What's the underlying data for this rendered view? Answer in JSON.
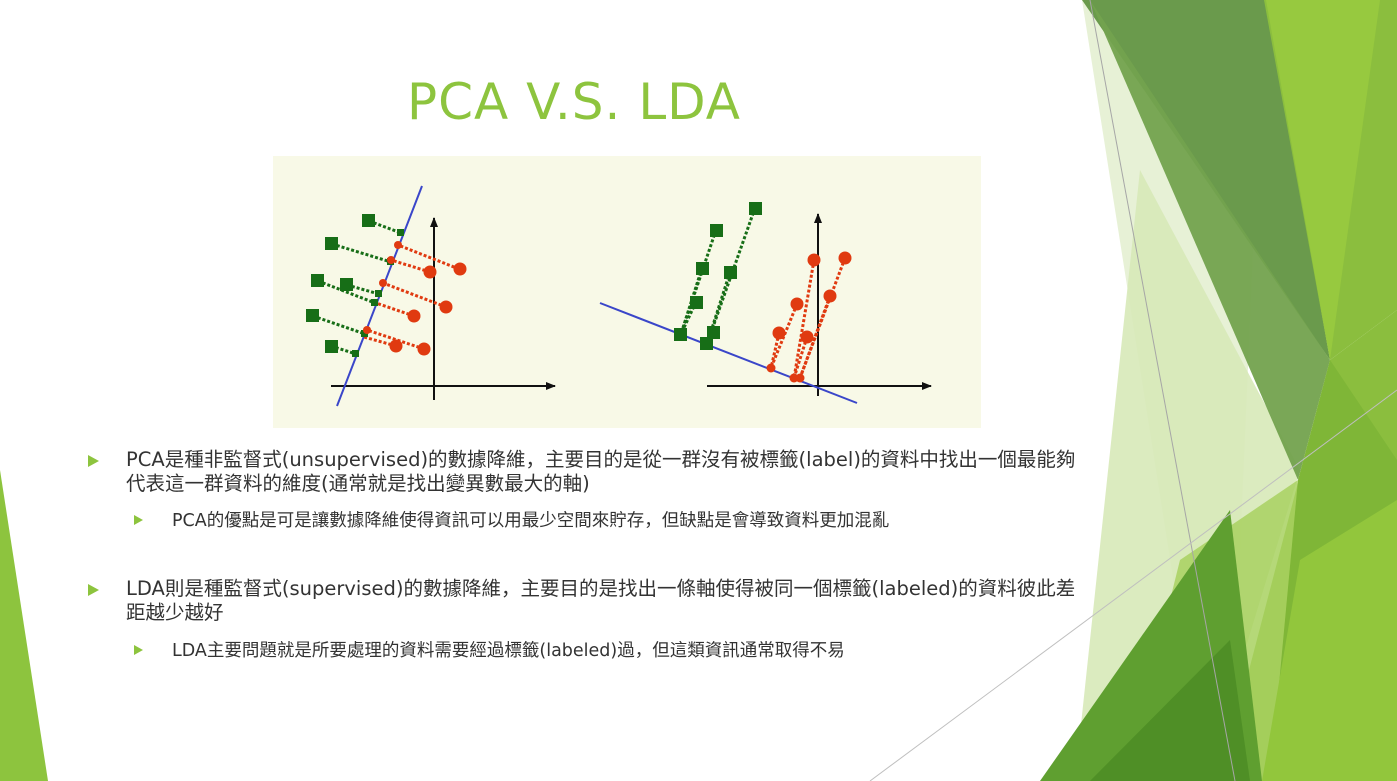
{
  "slide": {
    "title": "PCA V.S. LDA",
    "figure": {
      "left_panel": "pca-projection-diagram",
      "right_panel": "lda-projection-diagram",
      "colors": {
        "class_a": "#176e17",
        "class_b": "#e03a10",
        "projection_line": "#3a46c9",
        "axes": "#111111",
        "background": "#f8f9e7"
      }
    },
    "bullets": [
      {
        "text": "PCA是種非監督式(unsupervised)的數據降維，主要目的是從一群沒有被標籤(label)的資料中找出一個最能夠代表這一群資料的維度(通常就是找出變異數最大的軸)",
        "sub": "PCA的優點是可是讓數據降維使得資訊可以用最少空間來貯存，但缺點是會導致資料更加混亂"
      },
      {
        "text": "LDA則是種監督式(supervised)的數據降維，主要目的是找出一條軸使得被同一個標籤(labeled)的資料彼此差距越少越好",
        "sub": "LDA主要問題就是所要處理的資料需要經過標籤(labeled)過，但這類資訊通常取得不易"
      }
    ],
    "theme": {
      "accent": "#8dc43e",
      "text": "#333333",
      "dark_green": "#4e8a2c",
      "light_green": "#d4e8b0"
    }
  }
}
